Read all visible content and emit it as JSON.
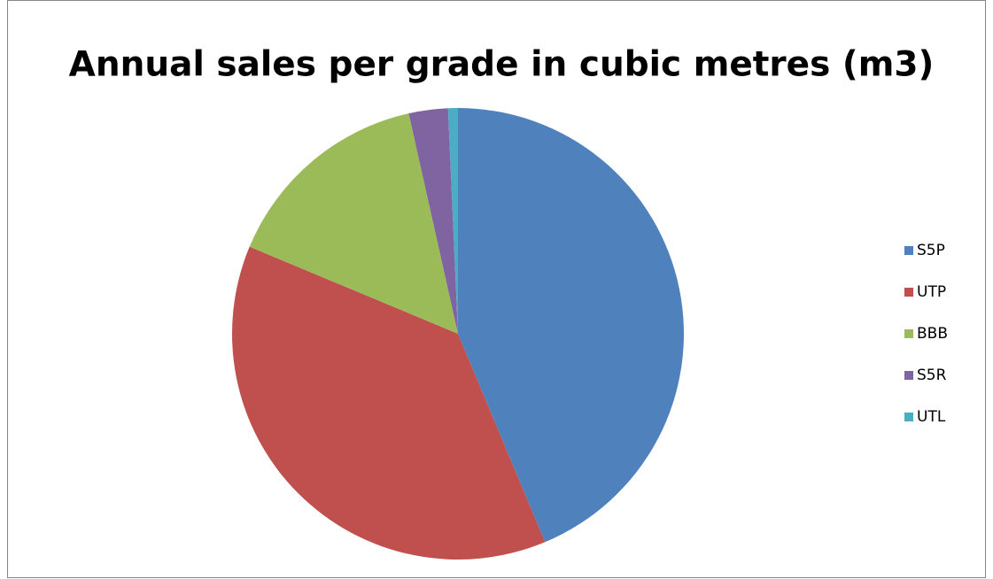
{
  "chart_data": {
    "type": "pie",
    "title": "Annual sales per grade in cubic metres (m3)",
    "categories": [
      "S5P",
      "UTP",
      "BBB",
      "S5R",
      "UTL"
    ],
    "values": [
      43.7,
      37.6,
      15.2,
      2.8,
      0.7
    ],
    "colors": [
      "#4f81bd",
      "#c0504d",
      "#9bbb59",
      "#8064a2",
      "#4bacc6"
    ],
    "legend": "right"
  }
}
